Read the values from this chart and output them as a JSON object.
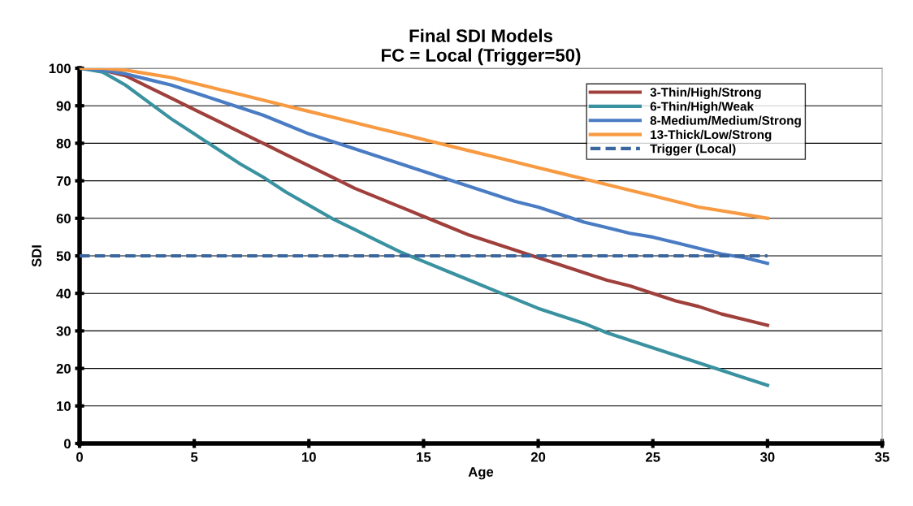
{
  "chart_data": {
    "type": "line",
    "title": "Final SDI Models\nFC = Local (Trigger=50)",
    "xlabel": "Age",
    "ylabel": "SDI",
    "x": [
      0,
      1,
      2,
      3,
      4,
      5,
      6,
      7,
      8,
      9,
      10,
      11,
      12,
      13,
      14,
      15,
      16,
      17,
      18,
      19,
      20,
      21,
      22,
      23,
      24,
      25,
      26,
      27,
      28,
      29,
      30
    ],
    "series": [
      {
        "name": "3-Thin/High/Strong",
        "color": "#a0403c",
        "values": [
          100,
          99.5,
          98,
          95,
          92,
          89,
          86,
          83,
          80,
          77,
          74,
          71,
          68,
          65.5,
          63,
          60.5,
          58,
          55.5,
          53.5,
          51.5,
          49.5,
          47.5,
          45.5,
          43.5,
          42,
          40,
          38,
          36.5,
          34.5,
          33,
          31.5
        ]
      },
      {
        "name": "6-Thin/High/Weak",
        "color": "#3a92a0",
        "values": [
          100,
          99,
          95.5,
          91,
          86.5,
          82.5,
          78.5,
          74.5,
          71,
          67,
          63.5,
          60,
          57,
          54,
          51,
          48.5,
          46,
          43.5,
          41,
          38.5,
          36,
          34,
          32,
          29.5,
          27.5,
          25.5,
          23.5,
          21.5,
          19.5,
          17.5,
          15.5
        ]
      },
      {
        "name": "8-Medium/Medium/Strong",
        "color": "#4a7cc4",
        "values": [
          100,
          99.5,
          98.5,
          97,
          95.5,
          93.5,
          91.5,
          89.5,
          87.5,
          85,
          82.5,
          80.5,
          78.5,
          76.5,
          74.5,
          72.5,
          70.5,
          68.5,
          66.5,
          64.5,
          63,
          61,
          59,
          57.5,
          56,
          55,
          53.5,
          52,
          50.5,
          49.5,
          48
        ]
      },
      {
        "name": "13-Thick/Low/Strong",
        "color": "#f79a42",
        "values": [
          100,
          100,
          99.5,
          98.5,
          97.5,
          96,
          94.5,
          93,
          91.5,
          90,
          88.5,
          87,
          85.5,
          84,
          82.5,
          81,
          79.5,
          78,
          76.5,
          75,
          73.5,
          72,
          70.5,
          69,
          67.5,
          66,
          64.5,
          63,
          62,
          61,
          60
        ]
      },
      {
        "name": "Trigger (Local)",
        "color": "#3a66a0",
        "line_style": "dashed",
        "values": [
          50,
          50,
          50,
          50,
          50,
          50,
          50,
          50,
          50,
          50,
          50,
          50,
          50,
          50,
          50,
          50,
          50,
          50,
          50,
          50,
          50,
          50,
          50,
          50,
          50,
          50,
          50,
          50,
          50,
          50,
          50
        ]
      }
    ],
    "xlim": [
      0,
      35
    ],
    "xticks": [
      0,
      5,
      10,
      15,
      20,
      25,
      30,
      35
    ],
    "ylim": [
      0,
      100
    ],
    "yticks": [
      0,
      10,
      20,
      30,
      40,
      50,
      60,
      70,
      80,
      90,
      100
    ],
    "grid": "y",
    "legend": "top right",
    "marker": "none",
    "line_style": "solid"
  }
}
